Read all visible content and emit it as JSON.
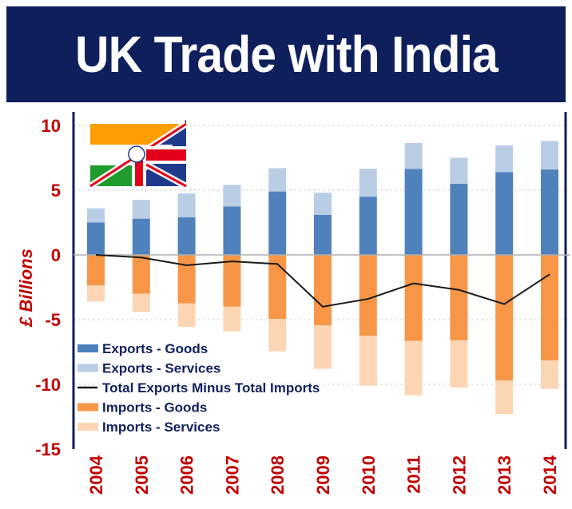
{
  "header": {
    "title": "UK Trade with India"
  },
  "chart_data": {
    "type": "bar",
    "stacked": true,
    "title": "UK Trade with India",
    "ylabel": "£ Billions",
    "xlabel": "",
    "ylim": [
      -15,
      10
    ],
    "yticks": [
      "10",
      "5",
      "0",
      "-5",
      "-10",
      "-15"
    ],
    "ytick_values": [
      10,
      5,
      0,
      -5,
      -10,
      -15
    ],
    "grid": true,
    "legend_placement": "bottom-left",
    "categories": [
      "2004",
      "2005",
      "2006",
      "2007",
      "2008",
      "2009",
      "2010",
      "2011",
      "2012",
      "2013",
      "2014"
    ],
    "series": [
      {
        "name": "Exports - Goods",
        "kind": "bar",
        "color": "#4f81bd",
        "values": [
          2.5,
          2.8,
          2.9,
          3.75,
          4.9,
          3.1,
          4.5,
          6.65,
          5.5,
          6.4,
          6.6
        ]
      },
      {
        "name": "Exports - Services",
        "kind": "bar",
        "color": "#b9cde5",
        "values": [
          1.1,
          1.45,
          1.85,
          1.65,
          1.8,
          1.7,
          2.15,
          2.0,
          2.0,
          2.05,
          2.2
        ]
      },
      {
        "name": "Total Exports Minus Total Imports",
        "kind": "line",
        "color": "#1a1a1a",
        "values": [
          0,
          -0.2,
          -0.8,
          -0.5,
          -0.7,
          -4.0,
          -3.4,
          -2.2,
          -2.7,
          -3.8,
          -1.5
        ]
      },
      {
        "name": "Imports - Goods",
        "kind": "bar",
        "color": "#f79646",
        "values": [
          -2.35,
          -3.0,
          -3.75,
          -4.0,
          -4.95,
          -5.45,
          -6.25,
          -6.65,
          -6.6,
          -9.7,
          -8.15
        ]
      },
      {
        "name": "Imports - Services",
        "kind": "bar",
        "color": "#fcd5b4",
        "values": [
          -1.25,
          -1.4,
          -1.8,
          -1.9,
          -2.5,
          -3.35,
          -3.85,
          -4.2,
          -3.65,
          -2.6,
          -2.2
        ]
      }
    ]
  },
  "icons": {
    "flag": "uk-india-flag-icon"
  },
  "colors": {
    "header_bg": "#0f1f5c",
    "axis_text": "#c00000",
    "legend_text": "#0f1f5c"
  }
}
